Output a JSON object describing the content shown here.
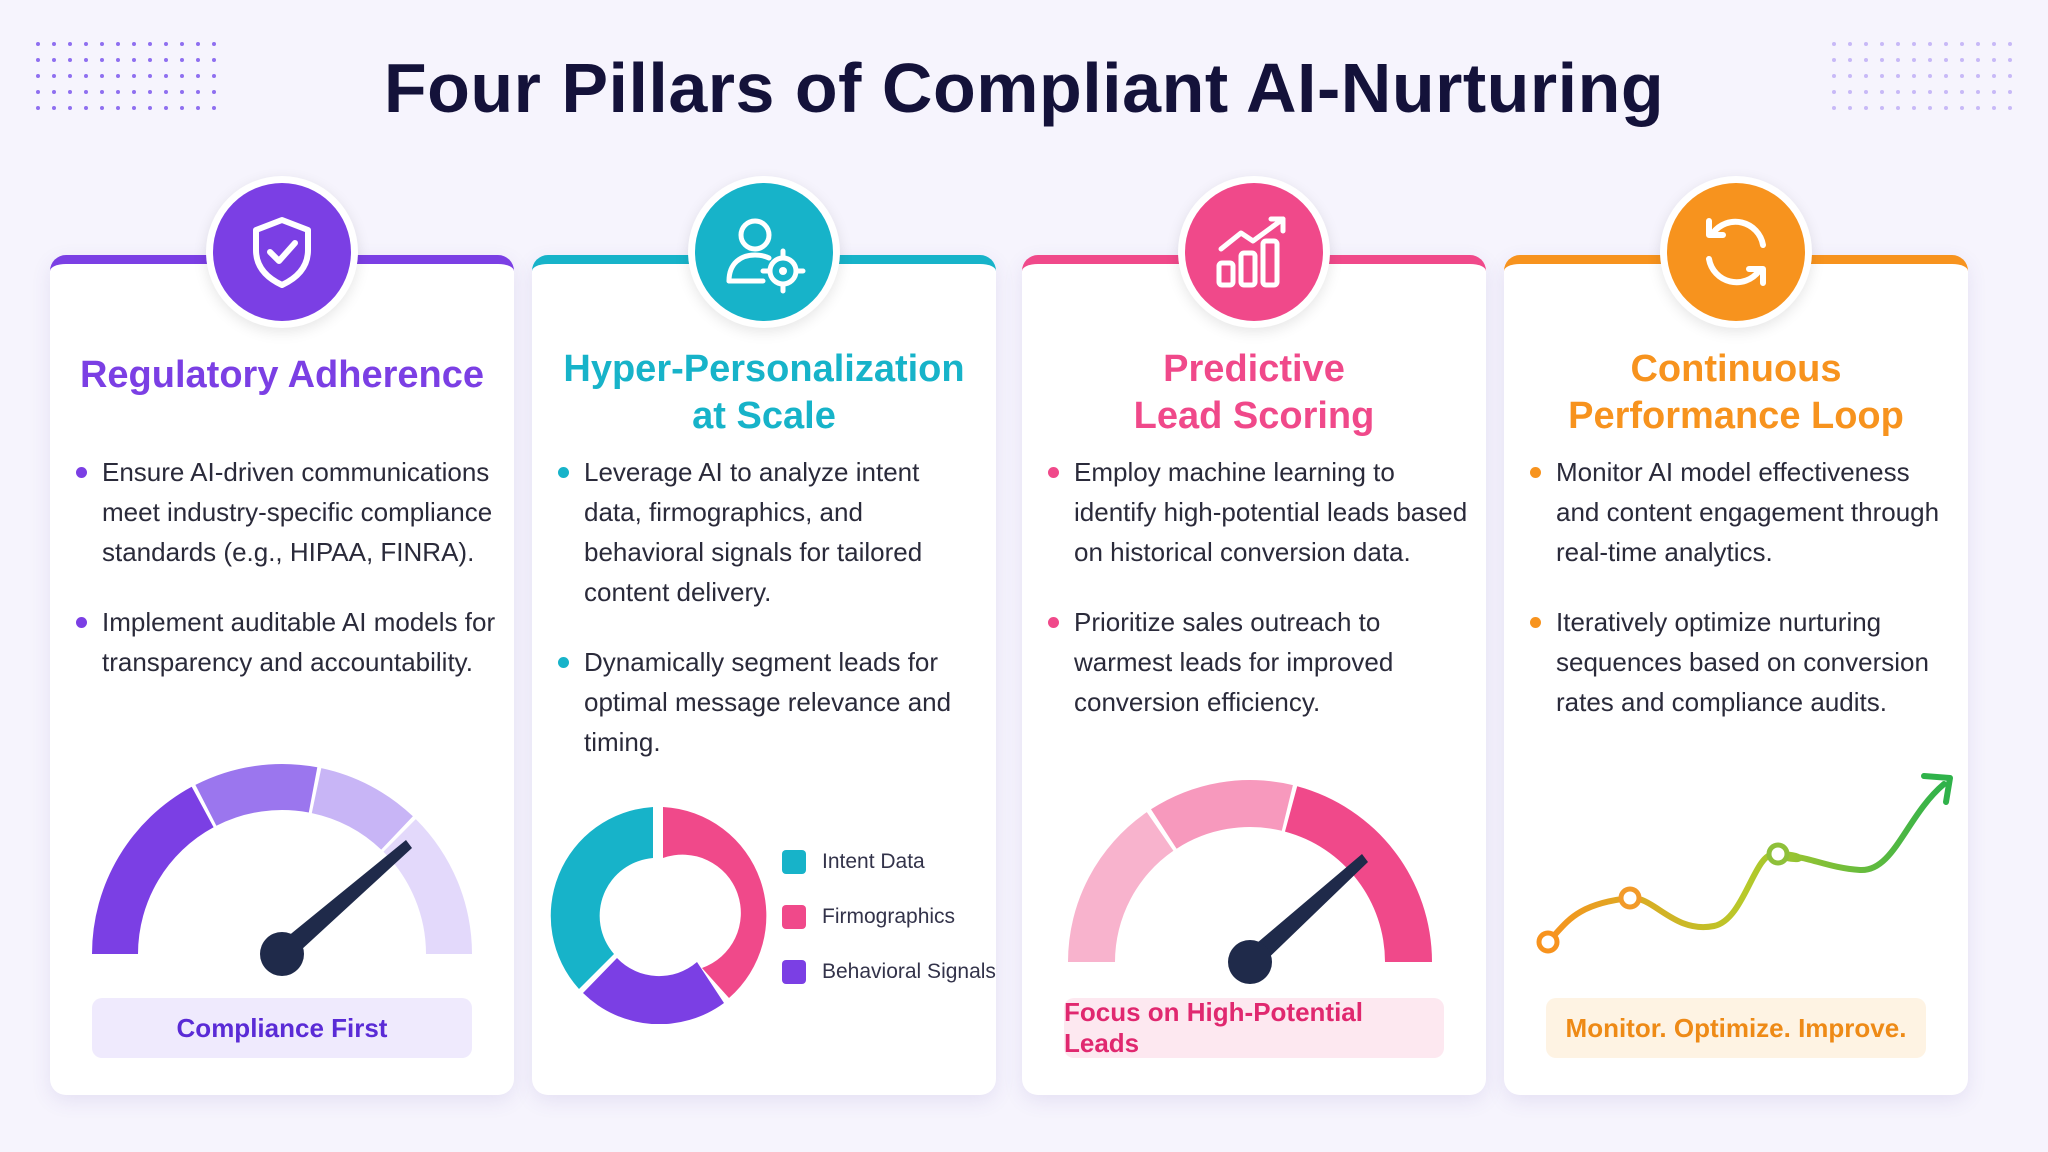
{
  "title": "Four Pillars of Compliant AI-Nurturing",
  "pillars": [
    {
      "icon": "shield-check-icon",
      "color": "#7b3fe4",
      "heading": "Regulatory Adherence",
      "bullets": [
        "Ensure AI-driven communications meet industry-specific compliance standards (e.g., HIPAA, FINRA).",
        "Implement auditable AI models for transparency and accountability."
      ],
      "visual": "gauge",
      "badge": "Compliance First",
      "badge_text_color": "#5a2bd6",
      "badge_bg": "#efeafd"
    },
    {
      "icon": "user-target-icon",
      "color": "#17b3c9",
      "heading_line1": "Hyper-Personalization",
      "heading_line2": "at Scale",
      "bullets": [
        "Leverage AI to analyze intent data, firmographics, and behavioral signals for tailored content delivery.",
        "Dynamically segment leads for optimal message relevance and timing."
      ],
      "visual": "donut",
      "legend": [
        {
          "label": "Intent Data",
          "color": "#17b3c9"
        },
        {
          "label": "Firmographics",
          "color": "#f0498a"
        },
        {
          "label": "Behavioral Signals",
          "color": "#7b3fe4"
        }
      ]
    },
    {
      "icon": "growth-chart-icon",
      "color": "#f0498a",
      "heading_line1": "Predictive",
      "heading_line2": "Lead Scoring",
      "bullets": [
        "Employ machine learning to identify high-potential leads based on historical conversion data.",
        "Prioritize sales outreach to warmest leads for improved conversion efficiency."
      ],
      "visual": "gauge",
      "badge": "Focus on High-Potential Leads",
      "badge_text_color": "#e0286f",
      "badge_bg": "#fde8f0"
    },
    {
      "icon": "refresh-cycle-icon",
      "color": "#f7931e",
      "heading_line1": "Continuous",
      "heading_line2": "Performance Loop",
      "bullets": [
        "Monitor AI model effectiveness and content engagement through real-time analytics.",
        "Iteratively optimize nurturing sequences based on conversion rates and compliance audits."
      ],
      "visual": "trend-line",
      "badge": "Monitor. Optimize. Improve.",
      "badge_text_color": "#ee8a16",
      "badge_bg": "#fef3e3"
    }
  ]
}
